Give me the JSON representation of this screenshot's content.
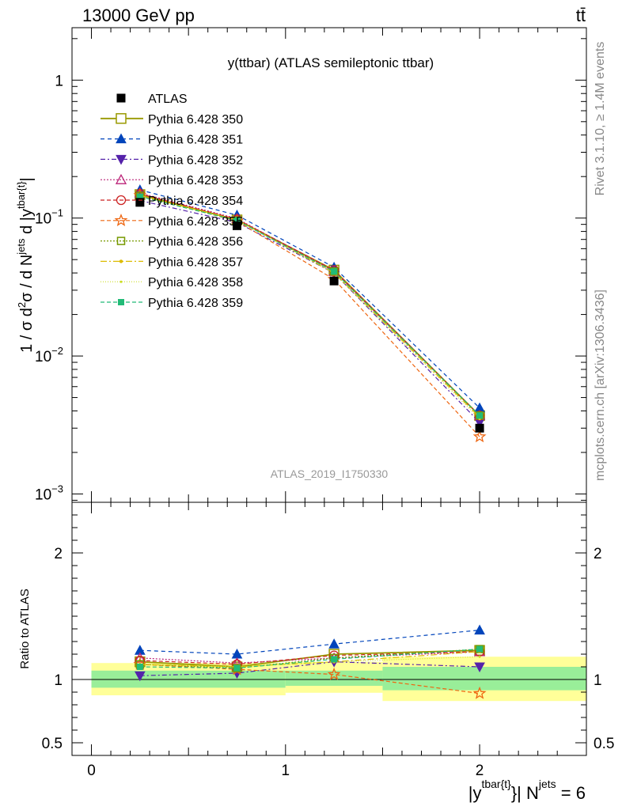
{
  "header": {
    "energy_label": "13000 GeV pp",
    "process_label": "tt̄"
  },
  "side_labels": {
    "rivet": "Rivet 3.1.10, ≥ 1.4M events",
    "mcplots": "mcplots.cern.ch [arXiv:1306.3436]"
  },
  "chart_data": [
    {
      "type": "line",
      "title": "y(ttbar) (ATLAS semileptonic ttbar)",
      "watermark": "ATLAS_2019_I1750330",
      "ylabel": "1 / σ d²σ / d N^jets d |y^tbar{t}|",
      "ylabel_parts": {
        "a": "1 / σ d",
        "b": "2",
        "c": "σ / d N",
        "d": "jets",
        "e": " d |y",
        "f": "tbar{t}",
        "g": "|"
      },
      "yscale": "log",
      "ylim": [
        0.00087,
        2.4
      ],
      "xlim": [
        -0.1,
        2.55
      ],
      "ytick_labels": [
        {
          "value": 1,
          "mant": "1",
          "exp": ""
        },
        {
          "value": 0.1,
          "mant": "10",
          "exp": "−1"
        },
        {
          "value": 0.01,
          "mant": "10",
          "exp": "−2"
        },
        {
          "value": 0.001,
          "mant": "10",
          "exp": "−3"
        }
      ],
      "legend_position": "top-left",
      "x": [
        0.25,
        0.75,
        1.25,
        2.0
      ],
      "data_series": {
        "name": "ATLAS",
        "values": [
          0.13,
          0.088,
          0.035,
          0.003
        ],
        "color": "#000000"
      },
      "series": [
        {
          "name": "Pythia 6.428 350",
          "values": [
            0.148,
            0.097,
            0.042,
            0.0037
          ],
          "color": "#999900",
          "marker": "square-open",
          "dash": "",
          "width": 1.8
        },
        {
          "name": "Pythia 6.428 351",
          "values": [
            0.16,
            0.105,
            0.044,
            0.0042
          ],
          "color": "#0044bb",
          "marker": "triangle-up",
          "dash": "5,4",
          "width": 1.2
        },
        {
          "name": "Pythia 6.428 352",
          "values": [
            0.134,
            0.093,
            0.04,
            0.0033
          ],
          "color": "#5522aa",
          "marker": "triangle-down",
          "dash": "6,3,2,3",
          "width": 1.2
        },
        {
          "name": "Pythia 6.428 353",
          "values": [
            0.152,
            0.099,
            0.041,
            0.0037
          ],
          "color": "#bb2277",
          "marker": "triangle-open",
          "dash": "2,2",
          "width": 1.2
        },
        {
          "name": "Pythia 6.428 354",
          "values": [
            0.15,
            0.098,
            0.042,
            0.0037
          ],
          "color": "#cc2222",
          "marker": "circle-open",
          "dash": "5,3",
          "width": 1.2
        },
        {
          "name": "Pythia 6.428 355",
          "values": [
            0.146,
            0.095,
            0.036,
            0.0026
          ],
          "color": "#ee6611",
          "marker": "star-open",
          "dash": "5,3",
          "width": 1.2
        },
        {
          "name": "Pythia 6.428 356",
          "values": [
            0.145,
            0.096,
            0.041,
            0.0037
          ],
          "color": "#779900",
          "marker": "square-open-small",
          "dash": "2,2",
          "width": 1.2
        },
        {
          "name": "Pythia 6.428 357",
          "values": [
            0.146,
            0.097,
            0.04,
            0.0036
          ],
          "color": "#ddbb00",
          "marker": "dot",
          "dash": "8,3,2,3",
          "width": 1.2
        },
        {
          "name": "Pythia 6.428 358",
          "values": [
            0.146,
            0.097,
            0.04,
            0.0035
          ],
          "color": "#ccdd22",
          "marker": "dot-small",
          "dash": "1,2",
          "width": 1.2
        },
        {
          "name": "Pythia 6.428 359",
          "values": [
            0.143,
            0.096,
            0.041,
            0.0037
          ],
          "color": "#22bb77",
          "marker": "square-small",
          "dash": "5,3",
          "width": 1.2
        }
      ]
    },
    {
      "type": "line",
      "ylabel": "Ratio to ATLAS",
      "xlabel_parts": {
        "a": "|y",
        "b": "tbar{t}",
        "c": "}| N",
        "d": "jets",
        "e": " = 6"
      },
      "ylim": [
        0.4,
        2.4
      ],
      "xlim": [
        -0.1,
        2.55
      ],
      "ytick_labels": [
        {
          "value": 2,
          "label": "2"
        },
        {
          "value": 1,
          "label": "1"
        },
        {
          "value": 0.5,
          "label": "0.5"
        }
      ],
      "xtick_labels": [
        {
          "value": 0,
          "label": "0"
        },
        {
          "value": 1,
          "label": "1"
        },
        {
          "value": 2,
          "label": "2"
        }
      ],
      "x": [
        0.25,
        0.75,
        1.25,
        2.0
      ],
      "bins": [
        {
          "lo": 0.0,
          "hi": 1.0,
          "stat_lo": 0.935,
          "stat_hi": 1.07,
          "tot_lo": 0.875,
          "tot_hi": 1.13
        },
        {
          "lo": 1.0,
          "hi": 1.5,
          "stat_lo": 0.95,
          "stat_hi": 1.07,
          "tot_lo": 0.895,
          "tot_hi": 1.14
        },
        {
          "lo": 1.5,
          "hi": 2.55,
          "stat_lo": 0.915,
          "stat_hi": 1.1,
          "tot_lo": 0.83,
          "tot_hi": 1.18
        }
      ],
      "band_colors": {
        "stat": "#99ee99",
        "total": "#ffff99"
      },
      "ratios": [
        [
          1.14,
          1.1,
          1.2,
          1.23
        ],
        [
          1.23,
          1.2,
          1.28,
          1.39
        ],
        [
          1.03,
          1.05,
          1.14,
          1.1
        ],
        [
          1.17,
          1.13,
          1.17,
          1.22
        ],
        [
          1.15,
          1.12,
          1.19,
          1.22
        ],
        [
          1.12,
          1.08,
          1.04,
          0.89
        ],
        [
          1.12,
          1.09,
          1.17,
          1.24
        ],
        [
          1.12,
          1.1,
          1.14,
          1.22
        ],
        [
          1.12,
          1.1,
          1.14,
          1.18
        ],
        [
          1.1,
          1.09,
          1.16,
          1.24
        ]
      ]
    }
  ]
}
